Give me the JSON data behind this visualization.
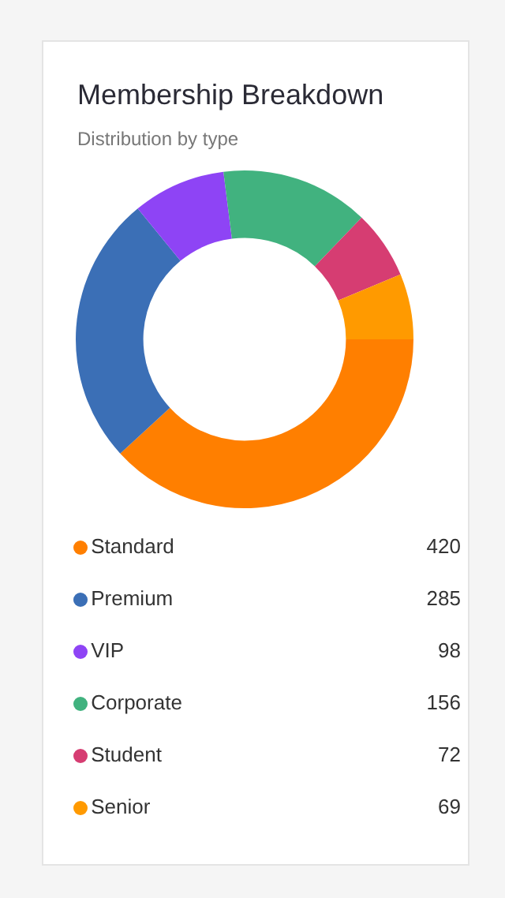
{
  "chart_data": {
    "type": "donut",
    "title": "Membership Breakdown",
    "subtitle": "Distribution by type",
    "categories": [
      "Standard",
      "Premium",
      "VIP",
      "Corporate",
      "Student",
      "Senior"
    ],
    "values": [
      420,
      285,
      98,
      156,
      72,
      69
    ],
    "colors": [
      "#ff7f00",
      "#3b6fb6",
      "#8e44f5",
      "#41b27f",
      "#d63d72",
      "#ff9a00"
    ],
    "data_labels": true,
    "legend": "bottom"
  }
}
